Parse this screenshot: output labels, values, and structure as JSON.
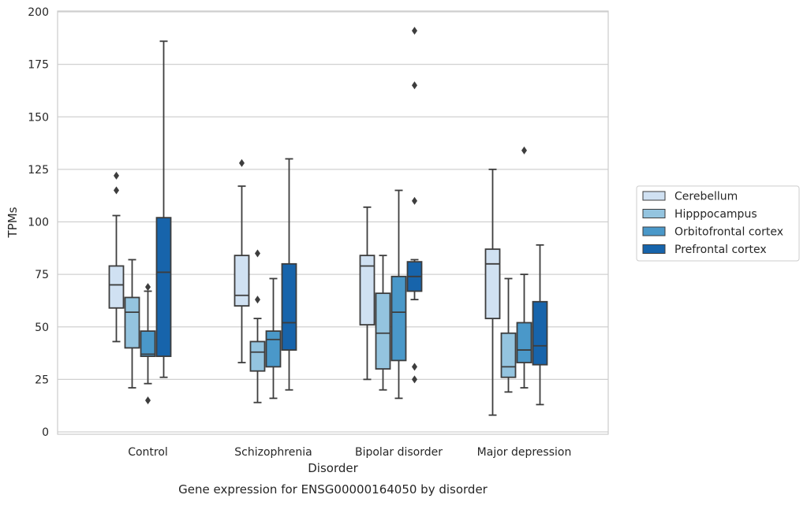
{
  "chart_data": {
    "type": "box",
    "title": "",
    "caption": "Gene expression for ENSG00000164050 by disorder",
    "xlabel": "Disorder",
    "ylabel": "TPMs",
    "ylim": [
      0,
      200
    ],
    "yticks": [
      0,
      25,
      50,
      75,
      100,
      125,
      150,
      175,
      200
    ],
    "grid": true,
    "legend_position": "right, outside plot",
    "categories": [
      "Control",
      "Schizophrenia",
      "Bipolar disorder",
      "Major depression"
    ],
    "series": [
      {
        "name": "Cerebellum",
        "color": "#d0e1f2",
        "boxes": [
          {
            "min": 43,
            "q1": 59,
            "median": 70,
            "q3": 79,
            "max": 103,
            "outliers": [
              115,
              122
            ]
          },
          {
            "min": 33,
            "q1": 60,
            "median": 65,
            "q3": 84,
            "max": 117,
            "outliers": [
              128
            ]
          },
          {
            "min": 25,
            "q1": 51,
            "median": 79,
            "q3": 84,
            "max": 107,
            "outliers": []
          },
          {
            "min": 8,
            "q1": 54,
            "median": 80,
            "q3": 87,
            "max": 125,
            "outliers": []
          }
        ]
      },
      {
        "name": "Hipppocampus",
        "color": "#94c4df",
        "boxes": [
          {
            "min": 21,
            "q1": 40,
            "median": 57,
            "q3": 64,
            "max": 82,
            "outliers": []
          },
          {
            "min": 14,
            "q1": 29,
            "median": 38,
            "q3": 43,
            "max": 54,
            "outliers": [
              63,
              85
            ]
          },
          {
            "min": 20,
            "q1": 30,
            "median": 47,
            "q3": 66,
            "max": 84,
            "outliers": []
          },
          {
            "min": 19,
            "q1": 26,
            "median": 31,
            "q3": 47,
            "max": 73,
            "outliers": []
          }
        ]
      },
      {
        "name": "Orbitofrontal cortex",
        "color": "#4a98c9",
        "boxes": [
          {
            "min": 23,
            "q1": 36,
            "median": 37,
            "q3": 48,
            "max": 67,
            "outliers": [
              15,
              69
            ]
          },
          {
            "min": 16,
            "q1": 31,
            "median": 44,
            "q3": 48,
            "max": 73,
            "outliers": []
          },
          {
            "min": 16,
            "q1": 34,
            "median": 57,
            "q3": 74,
            "max": 115,
            "outliers": []
          },
          {
            "min": 21,
            "q1": 33,
            "median": 39,
            "q3": 52,
            "max": 75,
            "outliers": [
              134
            ]
          }
        ]
      },
      {
        "name": "Prefrontal cortex",
        "color": "#1764ab",
        "boxes": [
          {
            "min": 26,
            "q1": 36,
            "median": 76,
            "q3": 102,
            "max": 186,
            "outliers": []
          },
          {
            "min": 20,
            "q1": 39,
            "median": 52,
            "q3": 80,
            "max": 130,
            "outliers": []
          },
          {
            "min": 63,
            "q1": 67,
            "median": 74,
            "q3": 81,
            "max": 82,
            "outliers": [
              25,
              31,
              110,
              165,
              191
            ]
          },
          {
            "min": 13,
            "q1": 32,
            "median": 41,
            "q3": 62,
            "max": 89,
            "outliers": []
          }
        ]
      }
    ]
  }
}
